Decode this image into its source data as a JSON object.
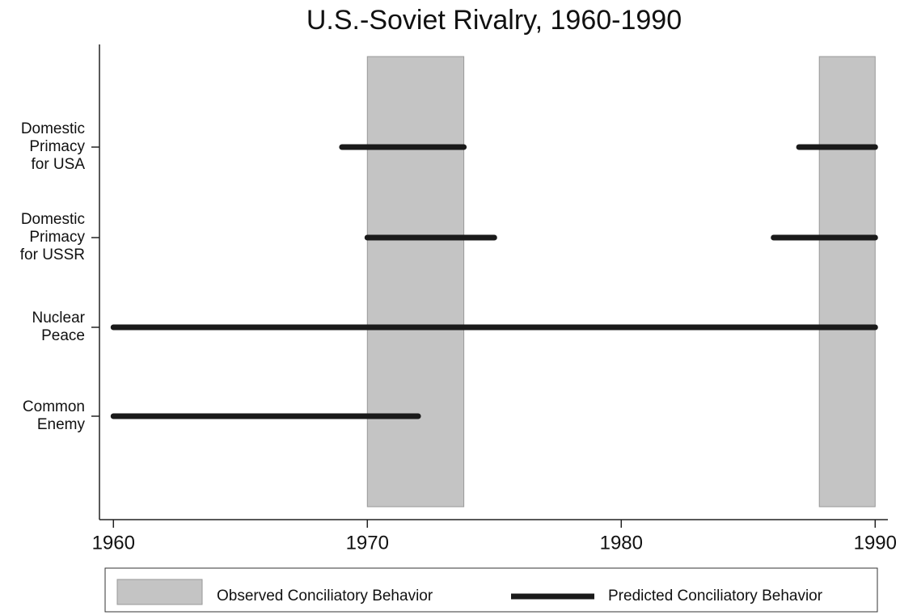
{
  "chart_data": {
    "type": "timeline",
    "title": "U.S.-Soviet Rivalry, 1960-1990",
    "categories": [
      [
        "Domestic",
        "Primacy",
        "for USA"
      ],
      [
        "Domestic",
        "Primacy",
        "for USSR"
      ],
      [
        "Nuclear",
        "Peace"
      ],
      [
        "Common",
        "Enemy"
      ]
    ],
    "xlim": [
      1959.45,
      1990.5
    ],
    "xticks": [
      1960,
      1970,
      1980,
      1990
    ],
    "observed": {
      "name": "Observed Conciliatory Behavior",
      "color": "#c4c4c4",
      "spans": [
        [
          1970,
          1973.8
        ],
        [
          1987.8,
          1990
        ]
      ]
    },
    "predicted": {
      "name": "Predicted Conciliatory Behavior",
      "color": "#1a1a1a",
      "segments": [
        [
          [
            1969,
            1973.8
          ],
          [
            1987,
            1990
          ]
        ],
        [
          [
            1970,
            1975
          ],
          [
            1986,
            1990
          ]
        ],
        [
          [
            1960,
            1990
          ]
        ],
        [
          [
            1960,
            1972
          ]
        ]
      ]
    }
  }
}
